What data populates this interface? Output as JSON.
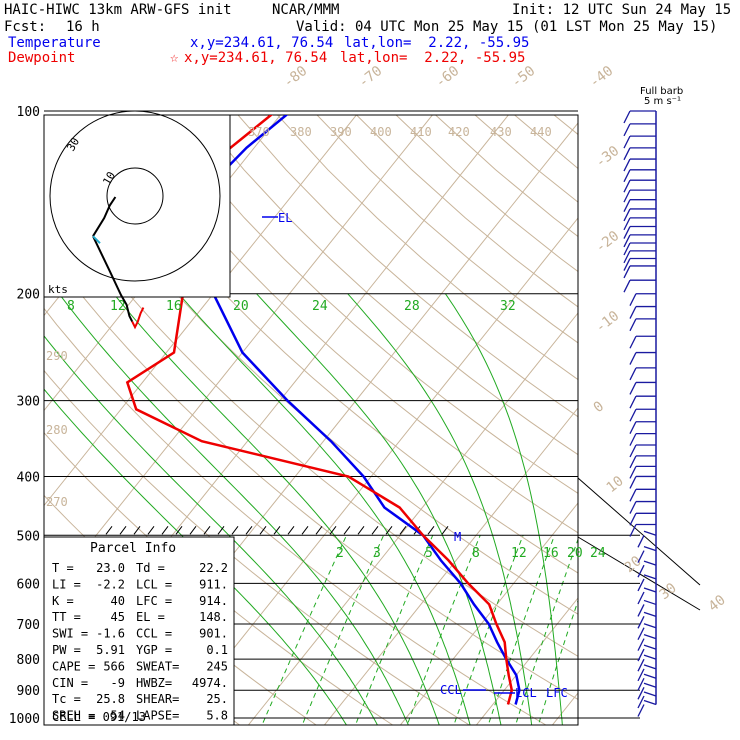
{
  "header": {
    "model": "HAIC-HIWC 13km ARW-GFS init",
    "org": "NCAR/MMM",
    "init": "Init: 12 UTC Sun 24 May 15",
    "fcst_label": "Fcst:",
    "fcst_value": "16 h",
    "valid": "Valid: 04 UTC Mon 25 May 15 (01 LST Mon 25 May 15)",
    "temp_label": "Temperature",
    "temp_xy": "x,y=234.61, 76.54",
    "temp_latlon": "lat,lon=  2.22, -55.95",
    "dew_label": "Dewpoint",
    "dew_xy": "x,y=234.61, 76.54",
    "dew_latlon": "lat,lon=  2.22, -55.95",
    "dew_marker": "☆"
  },
  "colors": {
    "temperature": "#0000ee",
    "dewpoint": "#ee0000",
    "isotherm": "#c8b49a",
    "dry_adiabat": "#c8b49a",
    "moist_adiabat": "#22aa22",
    "mixing_ratio": "#22aa22",
    "wind": "#1a1aa0",
    "grid": "#000000"
  },
  "chart_data": {
    "type": "line",
    "title": "",
    "y_axis": "pressure (hPa), log scale",
    "pressure_levels": [
      "100",
      "200",
      "300",
      "400",
      "500",
      "600",
      "700",
      "800",
      "900",
      "1000"
    ],
    "isotherm_labels": [
      "-80",
      "-70",
      "-60",
      "-50",
      "-40",
      "-30",
      "-20",
      "-10",
      "0",
      "10",
      "20",
      "30",
      "40"
    ],
    "theta_labels": [
      "370",
      "380",
      "390",
      "400",
      "410",
      "420",
      "430",
      "440",
      "290",
      "280",
      "270"
    ],
    "theta_e_labels": [
      "8",
      "12",
      "16",
      "20",
      "24",
      "28",
      "32"
    ],
    "mixing_ratio_labels": [
      "2",
      "3",
      "5",
      "8",
      "12",
      "16",
      "20",
      "24"
    ],
    "series": [
      {
        "name": "Temperature",
        "points": [
          [
            100,
            -69
          ],
          [
            115,
            -71
          ],
          [
            135,
            -72
          ],
          [
            160,
            -69
          ],
          [
            200,
            -60
          ],
          [
            250,
            -50
          ],
          [
            300,
            -39
          ],
          [
            350,
            -29
          ],
          [
            400,
            -21
          ],
          [
            450,
            -15
          ],
          [
            500,
            -7
          ],
          [
            550,
            -2
          ],
          [
            600,
            3
          ],
          [
            650,
            7
          ],
          [
            700,
            11
          ],
          [
            750,
            14
          ],
          [
            800,
            17
          ],
          [
            850,
            20
          ],
          [
            900,
            22
          ],
          [
            950,
            23
          ]
        ]
      },
      {
        "name": "Dewpoint",
        "points": [
          [
            100,
            -71
          ],
          [
            130,
            -75
          ],
          [
            160,
            -72
          ],
          [
            200,
            -64
          ],
          [
            250,
            -59
          ],
          [
            280,
            -62
          ],
          [
            310,
            -58
          ],
          [
            350,
            -46
          ],
          [
            400,
            -23
          ],
          [
            450,
            -13
          ],
          [
            500,
            -7
          ],
          [
            550,
            -1
          ],
          [
            600,
            4
          ],
          [
            650,
            9
          ],
          [
            700,
            12
          ],
          [
            750,
            15
          ],
          [
            800,
            17
          ],
          [
            850,
            19
          ],
          [
            900,
            21
          ],
          [
            950,
            22
          ]
        ]
      }
    ],
    "annotations": [
      "EL",
      "M",
      "CCL",
      "LCL",
      "LFC"
    ],
    "inset_hodograph": {
      "label": "kts",
      "ring_labels": [
        "10",
        "30"
      ],
      "segments": [
        {
          "color": "#000000",
          "points": [
            [
              -30,
              -3
            ],
            [
              -18,
              -28
            ],
            [
              -10,
              -45
            ],
            [
              -6,
              -52
            ],
            [
              -4,
              -60
            ],
            [
              -2,
              -64
            ]
          ]
        },
        {
          "color": "#000000",
          "points": [
            [
              -30,
              -3
            ],
            [
              -22,
              10
            ],
            [
              -18,
              19
            ],
            [
              -14,
              25
            ]
          ]
        },
        {
          "color": "#22aacc",
          "points": [
            [
              -30,
              -3
            ],
            [
              -25,
              -8
            ]
          ]
        },
        {
          "color": "#ee0000",
          "points": [
            [
              -2,
              -64
            ],
            [
              0,
              -68
            ],
            [
              2,
              -64
            ],
            [
              4,
              -58
            ],
            [
              6,
              -54
            ]
          ]
        }
      ]
    },
    "wind_barbs": {
      "title": "Full barb",
      "unit": "5 m s⁻¹",
      "levels_hpa": [
        100,
        105,
        110,
        115,
        120,
        125,
        130,
        135,
        140,
        145,
        150,
        155,
        160,
        165,
        170,
        175,
        180,
        190,
        200,
        210,
        220,
        235,
        250,
        265,
        280,
        295,
        310,
        325,
        340,
        355,
        370,
        385,
        400,
        420,
        440,
        460,
        480,
        500,
        530,
        560,
        590,
        620,
        650,
        680,
        710,
        740,
        770,
        800,
        830,
        860,
        890,
        920,
        950
      ]
    }
  },
  "parcel_info": {
    "title": "Parcel Info",
    "rows": [
      [
        "T  =",
        "23.0",
        "Td =",
        "22.2"
      ],
      [
        "LI =",
        "-2.2",
        "LCL =",
        "911."
      ],
      [
        "K  =",
        "40",
        "LFC =",
        "914."
      ],
      [
        "TT =",
        "45",
        "EL =",
        "148."
      ],
      [
        "SWI =",
        "-1.6",
        "CCL =",
        "901."
      ],
      [
        "PW =",
        "5.91",
        "YGP =",
        "0.1"
      ],
      [
        "CAPE =",
        "566",
        "SWEAT=",
        "245"
      ],
      [
        "CIN =",
        "-9",
        "HWBZ=",
        "4974."
      ],
      [
        "Tc =",
        "25.8",
        "SHEAR=",
        "25."
      ],
      [
        "SREH =",
        "54",
        "LAPSE=",
        "5.8"
      ]
    ],
    "cell": "CELL = 091/13"
  }
}
